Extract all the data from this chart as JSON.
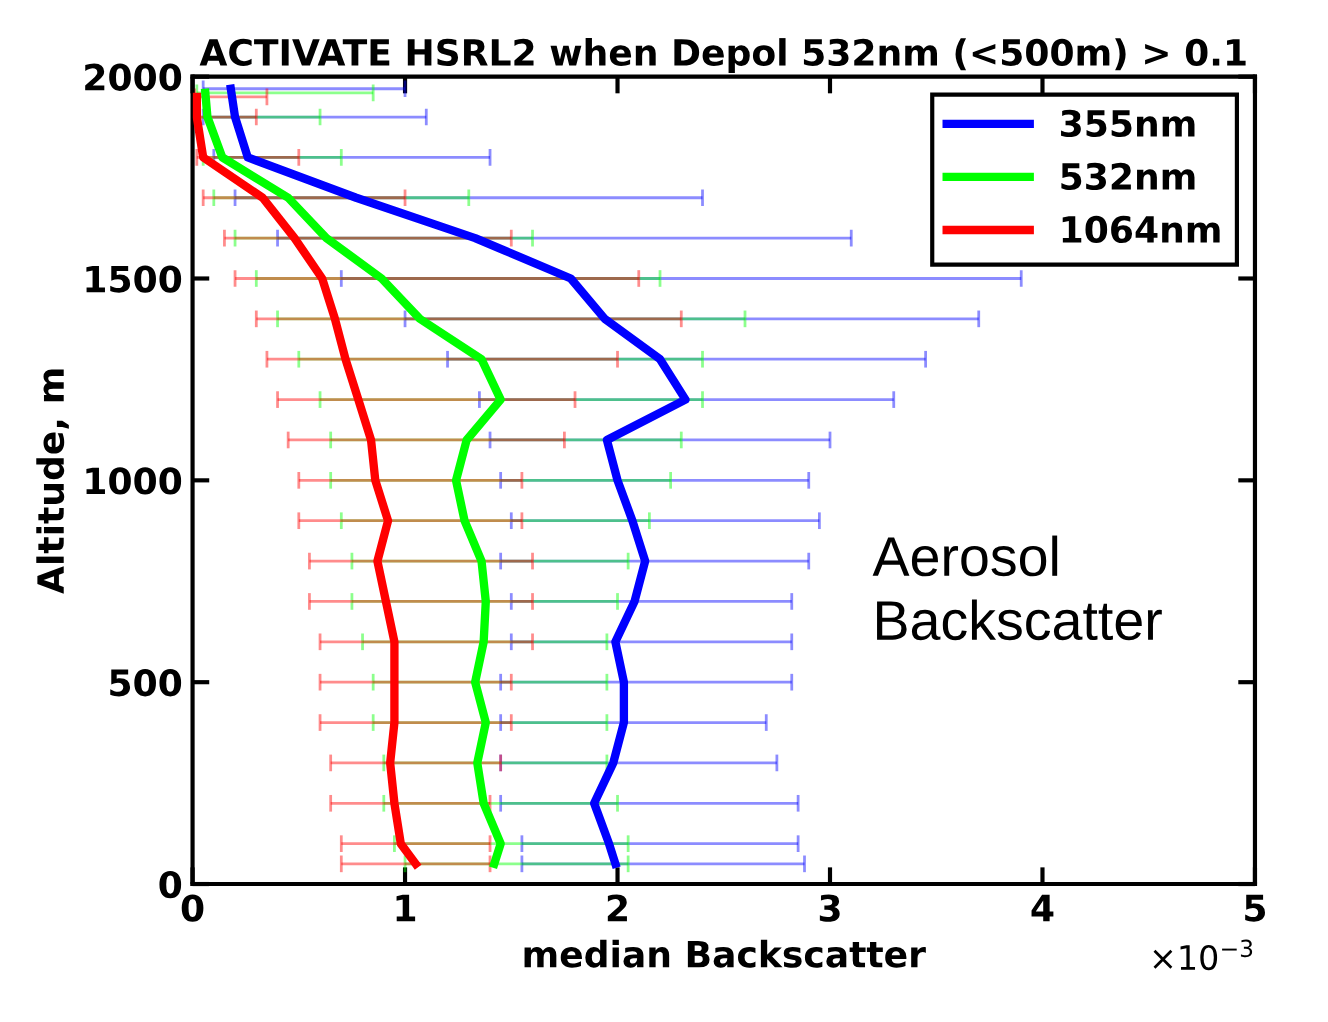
{
  "chart_data": {
    "type": "line",
    "title": "ACTIVATE HSRL2 when Depol 532nm (<500m) > 0.1",
    "xlabel": "median Backscatter",
    "ylabel": "Altitude, m",
    "xlim": [
      0,
      5
    ],
    "xticks": [
      0,
      1,
      2,
      3,
      4,
      5
    ],
    "ylim": [
      0,
      2000
    ],
    "yticks": [
      0,
      500,
      1000,
      1500,
      2000
    ],
    "legend": "top right",
    "grid": false,
    "annotations": [
      "×10$^{−3}$",
      "Aerosol\nBackscatter"
    ],
    "series": [
      {
        "name": "355nm",
        "color": "#0000ff",
        "x": [
          1.99,
          1.96,
          1.89,
          1.98,
          2.03,
          2.03,
          1.99,
          2.08,
          2.13,
          2.07,
          2.0,
          1.95,
          2.32,
          2.2,
          1.94,
          1.78,
          1.33,
          0.77,
          0.26,
          0.2,
          0.18
        ],
        "values": [
          50,
          100,
          200,
          300,
          400,
          500,
          600,
          700,
          800,
          900,
          1000,
          1100,
          1200,
          1300,
          1400,
          1500,
          1600,
          1700,
          1800,
          1900,
          1970
        ],
        "xerrors": [
          [
            1.55,
            2.88
          ],
          [
            1.55,
            2.85
          ],
          [
            1.45,
            2.85
          ],
          [
            1.45,
            2.75
          ],
          [
            1.45,
            2.7
          ],
          [
            1.45,
            2.82
          ],
          [
            1.5,
            2.82
          ],
          [
            1.5,
            2.82
          ],
          [
            1.45,
            2.9
          ],
          [
            1.5,
            2.95
          ],
          [
            1.45,
            2.9
          ],
          [
            1.4,
            3.0
          ],
          [
            1.35,
            3.3
          ],
          [
            1.2,
            3.45
          ],
          [
            1.0,
            3.7
          ],
          [
            0.7,
            3.9
          ],
          [
            0.4,
            3.1
          ],
          [
            0.2,
            2.4
          ],
          [
            0.1,
            1.4
          ],
          [
            0.05,
            1.1
          ],
          [
            0.05,
            1.0
          ]
        ]
      },
      {
        "name": "532nm",
        "color": "#00ff00",
        "x": [
          1.42,
          1.45,
          1.37,
          1.34,
          1.38,
          1.33,
          1.37,
          1.38,
          1.36,
          1.28,
          1.24,
          1.29,
          1.45,
          1.36,
          1.07,
          0.89,
          0.63,
          0.45,
          0.14,
          0.07,
          0.06
        ],
        "values": [
          50,
          100,
          200,
          300,
          400,
          500,
          600,
          700,
          800,
          900,
          1000,
          1100,
          1200,
          1300,
          1400,
          1500,
          1600,
          1700,
          1800,
          1900,
          1960
        ],
        "xerrors": [
          [
            1.0,
            2.05
          ],
          [
            0.95,
            2.05
          ],
          [
            0.9,
            2.0
          ],
          [
            0.9,
            1.95
          ],
          [
            0.85,
            1.95
          ],
          [
            0.85,
            1.95
          ],
          [
            0.8,
            1.95
          ],
          [
            0.75,
            2.0
          ],
          [
            0.75,
            2.05
          ],
          [
            0.7,
            2.15
          ],
          [
            0.65,
            2.25
          ],
          [
            0.65,
            2.3
          ],
          [
            0.6,
            2.4
          ],
          [
            0.5,
            2.4
          ],
          [
            0.4,
            2.6
          ],
          [
            0.3,
            2.2
          ],
          [
            0.2,
            1.6
          ],
          [
            0.1,
            1.3
          ],
          [
            0.05,
            0.7
          ],
          [
            0.02,
            0.6
          ],
          [
            0.02,
            0.85
          ]
        ]
      },
      {
        "name": "1064nm",
        "color": "#ff0000",
        "x": [
          1.05,
          0.98,
          0.95,
          0.93,
          0.95,
          0.95,
          0.95,
          0.91,
          0.87,
          0.92,
          0.86,
          0.84,
          0.78,
          0.72,
          0.67,
          0.61,
          0.48,
          0.33,
          0.05,
          0.02,
          0.02
        ],
        "values": [
          50,
          100,
          200,
          300,
          400,
          500,
          600,
          700,
          800,
          900,
          1000,
          1100,
          1200,
          1300,
          1400,
          1500,
          1600,
          1700,
          1800,
          1900,
          1950
        ],
        "xerrors": [
          [
            0.7,
            1.4
          ],
          [
            0.7,
            1.4
          ],
          [
            0.65,
            1.4
          ],
          [
            0.65,
            1.45
          ],
          [
            0.6,
            1.5
          ],
          [
            0.6,
            1.5
          ],
          [
            0.6,
            1.6
          ],
          [
            0.55,
            1.6
          ],
          [
            0.55,
            1.6
          ],
          [
            0.5,
            1.55
          ],
          [
            0.5,
            1.55
          ],
          [
            0.45,
            1.75
          ],
          [
            0.4,
            1.8
          ],
          [
            0.35,
            2.0
          ],
          [
            0.3,
            2.3
          ],
          [
            0.2,
            2.1
          ],
          [
            0.15,
            1.5
          ],
          [
            0.05,
            1.0
          ],
          [
            0.02,
            0.5
          ],
          [
            0.01,
            0.3
          ],
          [
            0.01,
            0.35
          ]
        ]
      }
    ]
  }
}
